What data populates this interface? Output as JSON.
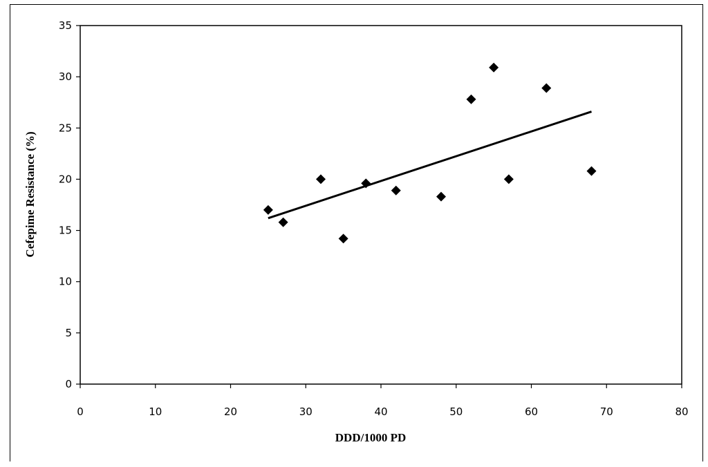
{
  "chart_data": {
    "type": "scatter",
    "xlabel": "DDD/1000 PD",
    "ylabel": "Cefepime Resistance (%)",
    "xlim": [
      0,
      80
    ],
    "ylim": [
      0,
      35
    ],
    "xticks": [
      0,
      10,
      20,
      30,
      40,
      50,
      60,
      70,
      80
    ],
    "yticks": [
      0,
      5,
      10,
      15,
      20,
      25,
      30,
      35
    ],
    "xtick_labels": [
      "0",
      "10",
      "20",
      "30",
      "40",
      "50",
      "60",
      "70",
      "80"
    ],
    "ytick_labels": [
      "0",
      "5",
      "10",
      "15",
      "20",
      "25",
      "30",
      "35"
    ],
    "grid": false,
    "legend": "none",
    "marker": "diamond",
    "marker_color": "#000000",
    "points": [
      {
        "x": 25,
        "y": 17.0
      },
      {
        "x": 27,
        "y": 15.8
      },
      {
        "x": 32,
        "y": 20.0
      },
      {
        "x": 35,
        "y": 14.2
      },
      {
        "x": 38,
        "y": 19.6
      },
      {
        "x": 42,
        "y": 18.9
      },
      {
        "x": 48,
        "y": 18.3
      },
      {
        "x": 52,
        "y": 27.8
      },
      {
        "x": 55,
        "y": 30.9
      },
      {
        "x": 57,
        "y": 20.0
      },
      {
        "x": 62,
        "y": 28.9
      },
      {
        "x": 68,
        "y": 20.8
      }
    ],
    "trendline": {
      "x1": 25,
      "y1": 16.2,
      "x2": 68,
      "y2": 26.6
    }
  }
}
